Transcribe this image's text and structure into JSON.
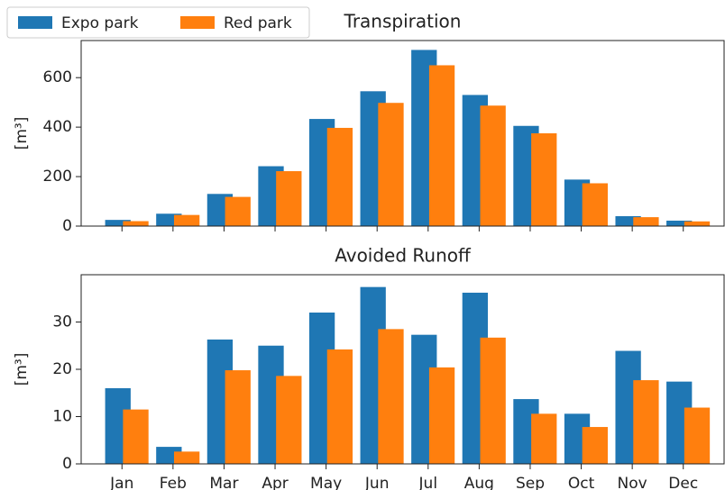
{
  "chart_data": [
    {
      "type": "bar",
      "title": "Transpiration",
      "ylabel": "[m³]",
      "legend": "upper left",
      "ylim": [
        0,
        750
      ],
      "yticks": [
        0,
        200,
        400,
        600
      ],
      "series": [
        {
          "name": "Expo park",
          "color": "#1f77b4",
          "values": [
            25,
            50,
            130,
            242,
            433,
            545,
            712,
            530,
            405,
            188,
            40,
            22
          ]
        },
        {
          "name": "Red park",
          "color": "#ff7f0e",
          "values": [
            20,
            45,
            118,
            222,
            397,
            498,
            650,
            487,
            375,
            173,
            36,
            19
          ]
        }
      ]
    },
    {
      "type": "bar",
      "title": "Avoided Runoff",
      "ylabel": "[m³]",
      "categories": [
        "Jan",
        "Feb",
        "Mar",
        "Apr",
        "May",
        "Jun",
        "Jul",
        "Aug",
        "Sep",
        "Oct",
        "Nov",
        "Dec"
      ],
      "ylim": [
        0,
        40
      ],
      "yticks": [
        0,
        10,
        20,
        30
      ],
      "series": [
        {
          "color": "#1f77b4",
          "values": [
            16,
            3.6,
            26.3,
            25,
            32,
            37.4,
            27.3,
            36.2,
            13.7,
            10.6,
            23.9,
            17.4
          ]
        },
        {
          "color": "#ff7f0e",
          "values": [
            11.5,
            2.6,
            19.8,
            18.6,
            24.2,
            28.5,
            20.4,
            26.7,
            10.6,
            7.8,
            17.7,
            11.9
          ]
        }
      ]
    }
  ]
}
